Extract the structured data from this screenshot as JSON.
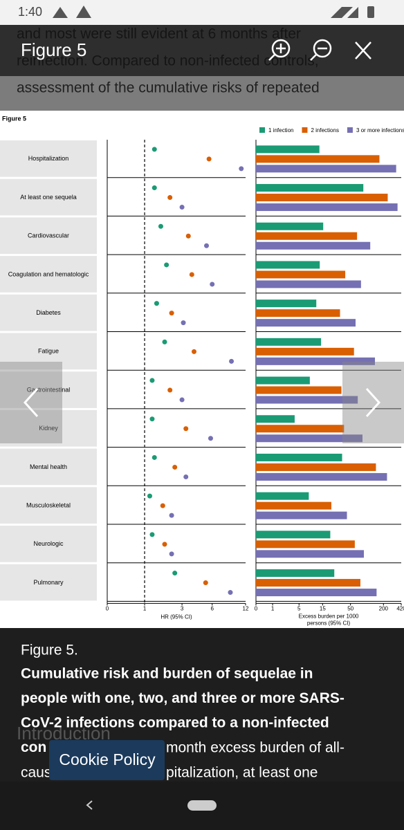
{
  "status_bar": {
    "time": "1:40"
  },
  "viewer": {
    "title": "Figure 5"
  },
  "background_text": [
    "and most were still evident at 6 months after",
    "reinfection. Compared to non-infected controls,",
    "assessment of the cumulative risks of repeated"
  ],
  "figure_label": "Figure 5",
  "chart_data": [
    {
      "type": "dot",
      "xlabel": "HR (95% CI)",
      "categories": [
        "Hospitalization",
        "At least one sequela",
        "Cardiovascular",
        "Coagulation and hematologic",
        "Diabetes",
        "Fatigue",
        "Gastrointestinal",
        "Kidney",
        "Mental health",
        "Musculoskeletal",
        "Neurologic",
        "Pulmonary"
      ],
      "series": [
        {
          "color": "#1a9b74",
          "values": [
            1.4,
            1.4,
            1.7,
            2.0,
            1.5,
            1.9,
            1.3,
            1.3,
            1.4,
            1.2,
            1.3,
            2.5
          ]
        },
        {
          "color": "#d95f02",
          "values": [
            5.6,
            2.2,
            3.5,
            3.8,
            2.3,
            4.0,
            2.2,
            3.3,
            2.5,
            1.8,
            1.9,
            5.2
          ]
        },
        {
          "color": "#7570b3",
          "values": [
            11.0,
            3.0,
            5.3,
            6.0,
            3.1,
            9.0,
            3.0,
            5.8,
            3.3,
            2.3,
            2.3,
            8.8
          ]
        }
      ],
      "xlim": [
        0,
        12
      ],
      "xticks": [
        0,
        1,
        3,
        6,
        12
      ],
      "xscale": "log1p",
      "reference_line": 1
    },
    {
      "type": "barh",
      "xlabel": [
        "Excess burden per 1000",
        "persons (95% CI)"
      ],
      "series": [
        {
          "name": "1 infection",
          "color": "#1a9b74",
          "values": [
            13,
            86,
            15.4,
            13.2,
            11.3,
            14,
            8.4,
            4.0,
            35,
            8.0,
            21,
            25
          ]
        },
        {
          "name": "2 infections",
          "color": "#d95f02",
          "values": [
            169,
            239,
            66,
            40,
            32,
            58,
            34,
            38,
            146,
            22,
            60,
            76
          ]
        },
        {
          "name": "3 or more infections",
          "color": "#7570b3",
          "values": [
            340,
            360,
            115,
            78,
            62,
            140,
            68,
            83,
            232,
            43,
            88,
            150
          ]
        }
      ],
      "xlim": [
        0,
        420
      ],
      "xticks": [
        0,
        1,
        5,
        15,
        50,
        200,
        420
      ],
      "xscale": "log1p",
      "legend": "top-right"
    }
  ],
  "caption": {
    "heading": "Figure 5.",
    "lines": [
      "Cumulative risk and burden of sequelae in",
      "people with one, two, and three or more SARS-",
      "CoV-2 infections compared to a non-infected",
      "con"
    ]
  },
  "behind_caption": {
    "heading": "Introduction",
    "lines": [
      "month excess burden of all-",
      "caus",
      "pitalization, at least one"
    ]
  },
  "cookie_button": "Cookie Policy"
}
